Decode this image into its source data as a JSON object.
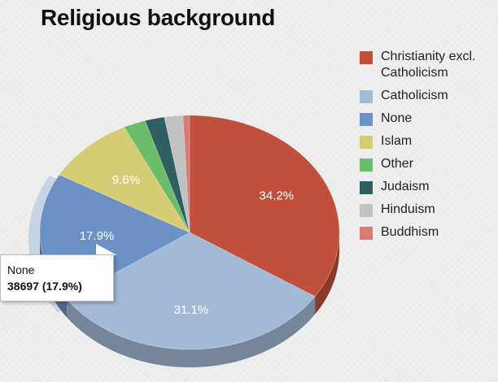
{
  "chart_data": {
    "type": "pie",
    "title": "Religious background",
    "slices": [
      {
        "label": "Christianity excl. Catholicism",
        "value": 34.2,
        "color": "#c0503c",
        "display": "34.2%"
      },
      {
        "label": "Catholicism",
        "value": 31.1,
        "color": "#a3bad6",
        "display": "31.1%"
      },
      {
        "label": "None",
        "value": 17.9,
        "color": "#6c91c4",
        "display": "17.9%"
      },
      {
        "label": "Islam",
        "value": 9.6,
        "color": "#d6cc74",
        "display": "9.6%"
      },
      {
        "label": "Other",
        "value": 2.4,
        "color": "#6cbd6a",
        "display": ""
      },
      {
        "label": "Judaism",
        "value": 2.1,
        "color": "#2f5f62",
        "display": ""
      },
      {
        "label": "Hinduism",
        "value": 2.0,
        "color": "#c1c1c1",
        "display": ""
      },
      {
        "label": "Buddhism",
        "value": 0.7,
        "color": "#d97b74",
        "display": ""
      }
    ],
    "legend_position": "right",
    "highlighted": "None"
  },
  "tooltip": {
    "label": "None",
    "value_text": "38697 (17.9%)"
  }
}
